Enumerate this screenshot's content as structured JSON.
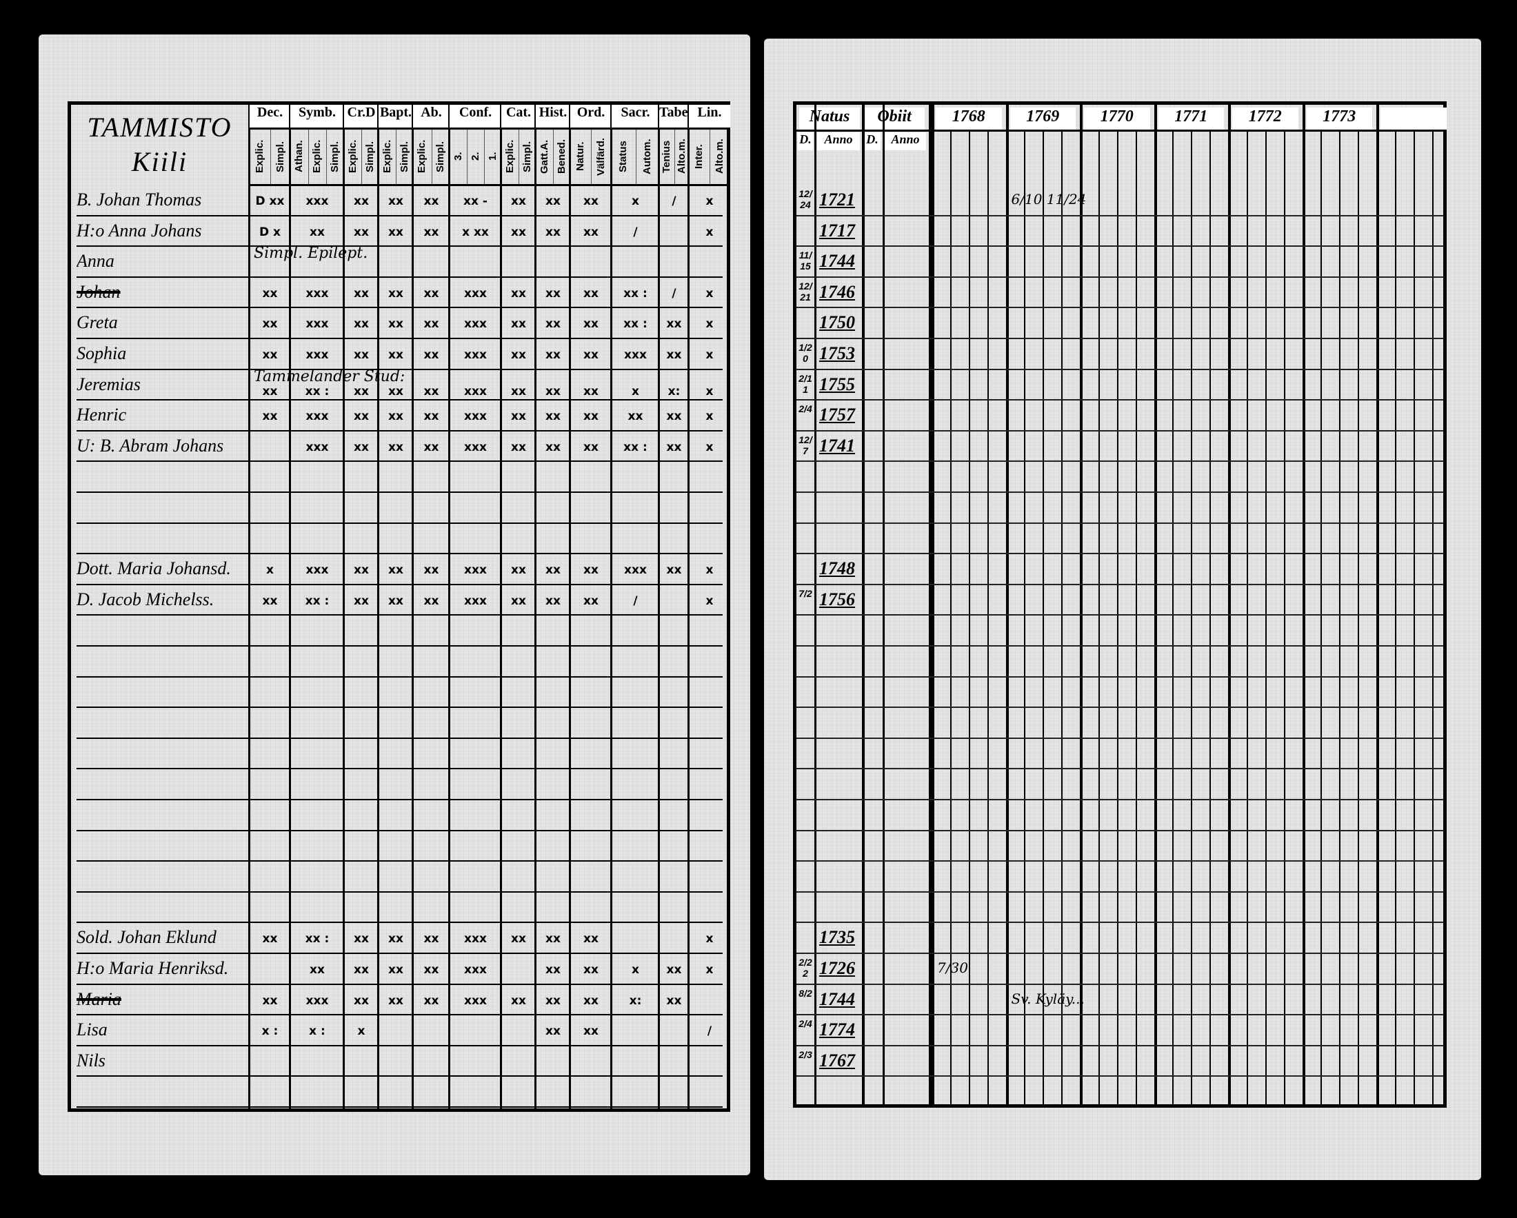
{
  "left_page": {
    "place_title": "TAMMISTO",
    "place_subtitle": "Kiili",
    "columns": [
      {
        "label": "Dec.",
        "sub": [
          "Explic.",
          "Simpl."
        ]
      },
      {
        "label": "Symb.",
        "sub": [
          "Athan.",
          "Explic.",
          "Simpl."
        ]
      },
      {
        "label": "Cr.D",
        "sub": [
          "Explic.",
          "Simpl."
        ]
      },
      {
        "label": "Bapt.",
        "sub": [
          "Explic.",
          "Simpl."
        ]
      },
      {
        "label": "Ab.",
        "sub": [
          "Explic.",
          "Simpl."
        ]
      },
      {
        "label": "Conf.",
        "sub": [
          "3.",
          "2.",
          "1."
        ]
      },
      {
        "label": "Cat.",
        "sub": [
          "Explic.",
          "Simpl."
        ]
      },
      {
        "label": "Hist.",
        "sub": [
          "Gatt.A.",
          "Bened."
        ]
      },
      {
        "label": "Ord.",
        "sub": [
          "Natur.",
          "Välfärd."
        ]
      },
      {
        "label": "Sacr.",
        "sub": [
          "Status",
          "Autom."
        ]
      },
      {
        "label": "Tabe.",
        "sub": [
          "Tenius",
          "Alto.m."
        ]
      },
      {
        "label": "Lin.",
        "sub": [
          "Inter.",
          "Alto.m."
        ]
      }
    ],
    "rows": [
      {
        "row": 0,
        "name": "B. Johan Thomas",
        "marks": [
          "D xx",
          "xxx",
          "xx",
          "xx",
          "xx",
          "xx -",
          "xx",
          "xx",
          "xx",
          "x",
          "/",
          "x"
        ]
      },
      {
        "row": 1,
        "name": "H:o Anna Johans",
        "marks": [
          "D x",
          "xx",
          "xx",
          "xx",
          "xx",
          "x xx",
          "xx",
          "xx",
          "xx",
          "/",
          "",
          "x"
        ]
      },
      {
        "row": 2,
        "name": "Anna",
        "marks": [
          "",
          "",
          "",
          "",
          "",
          "",
          "",
          "",
          "",
          "",
          "",
          ""
        ]
      },
      {
        "row": 3,
        "name": "Johan",
        "struck": true,
        "marks": [
          "xx",
          "xxx",
          "xx",
          "xx",
          "xx",
          "xxx",
          "xx",
          "xx",
          "xx",
          "xx :",
          "/",
          "x"
        ]
      },
      {
        "row": 4,
        "name": "Greta",
        "marks": [
          "xx",
          "xxx",
          "xx",
          "xx",
          "xx",
          "xxx",
          "xx",
          "xx",
          "xx",
          "xx :",
          "xx",
          "x"
        ]
      },
      {
        "row": 5,
        "name": "Sophia",
        "marks": [
          "xx",
          "xxx",
          "xx",
          "xx",
          "xx",
          "xxx",
          "xx",
          "xx",
          "xx",
          "xxx",
          "xx",
          "x"
        ]
      },
      {
        "row": 6,
        "name": "Jeremias",
        "marks": [
          "xx",
          "xx :",
          "xx",
          "xx",
          "xx",
          "xxx",
          "xx",
          "xx",
          "xx",
          "x",
          "x:",
          "x"
        ]
      },
      {
        "row": 7,
        "name": "Henric",
        "marks": [
          "xx",
          "xxx",
          "xx",
          "xx",
          "xx",
          "xxx",
          "xx",
          "xx",
          "xx",
          "xx",
          "xx",
          "x"
        ]
      },
      {
        "row": 8,
        "name": "U: B. Abram Johans",
        "marks": [
          "",
          "xxx",
          "xx",
          "xx",
          "xx",
          "xxx",
          "xx",
          "xx",
          "xx",
          "xx :",
          "xx",
          "x"
        ]
      },
      {
        "row": 12,
        "name": "Dott. Maria Johansd.",
        "marks": [
          "x",
          "xxx",
          "xx",
          "xx",
          "xx",
          "xxx",
          "xx",
          "xx",
          "xx",
          "xxx",
          "xx",
          "x"
        ]
      },
      {
        "row": 13,
        "name": "D. Jacob Michelss.",
        "marks": [
          "xx",
          "xx :",
          "xx",
          "xx",
          "xx",
          "xxx",
          "xx",
          "xx",
          "xx",
          "/",
          "",
          "x"
        ]
      },
      {
        "row": 24,
        "name": "Sold. Johan Eklund",
        "marks": [
          "xx",
          "xx :",
          "xx",
          "xx",
          "xx",
          "xxx",
          "xx",
          "xx",
          "xx",
          "",
          "",
          "x"
        ]
      },
      {
        "row": 25,
        "name": "H:o Maria Henriksd.",
        "marks": [
          "",
          "xx",
          "xx",
          "xx",
          "xx",
          "xxx",
          "",
          "xx",
          "xx",
          "x",
          "xx",
          "x"
        ]
      },
      {
        "row": 26,
        "name": "Maria",
        "struck": true,
        "marks": [
          "xx",
          "xxx",
          "xx",
          "xx",
          "xx",
          "xxx",
          "xx",
          "xx",
          "xx",
          "x:",
          "xx",
          ""
        ]
      },
      {
        "row": 27,
        "name": "Lisa",
        "marks": [
          "x :",
          "x :",
          "x",
          "",
          "",
          "",
          "",
          "xx",
          "xx",
          "",
          "",
          "/"
        ]
      },
      {
        "row": 28,
        "name": "Nils",
        "marks": [
          "",
          "",
          "",
          "",
          "",
          "",
          "",
          "",
          "",
          "",
          "",
          ""
        ]
      }
    ],
    "notes": [
      {
        "row": 2,
        "text": "Simpl. Epilept."
      },
      {
        "row": 6,
        "text": "Tammelander Stud:"
      }
    ]
  },
  "right_page": {
    "natus": {
      "label": "Natus",
      "sub_d": "D.",
      "sub_anno": "Anno"
    },
    "obiit": {
      "label": "Obiit",
      "sub_d": "D.",
      "sub_anno": "Anno"
    },
    "years": [
      "1768",
      "1769",
      "1770",
      "1771",
      "1772",
      "1773",
      ""
    ],
    "rows": [
      {
        "row": 0,
        "day": "12/24",
        "year": "1721"
      },
      {
        "row": 1,
        "day": "",
        "year": "1717"
      },
      {
        "row": 2,
        "day": "11/15",
        "year": "1744"
      },
      {
        "row": 3,
        "day": "12/21",
        "year": "1746"
      },
      {
        "row": 4,
        "day": "",
        "year": "1750"
      },
      {
        "row": 5,
        "day": "1/20",
        "year": "1753"
      },
      {
        "row": 6,
        "day": "2/11",
        "year": "1755"
      },
      {
        "row": 7,
        "day": "2/4",
        "year": "1757"
      },
      {
        "row": 8,
        "day": "12/7",
        "year": "1741"
      },
      {
        "row": 12,
        "day": "",
        "year": "1748"
      },
      {
        "row": 13,
        "day": "7/2",
        "year": "1756"
      },
      {
        "row": 24,
        "day": "",
        "year": "1735"
      },
      {
        "row": 25,
        "day": "2/22",
        "year": "1726"
      },
      {
        "row": 26,
        "day": "8/2",
        "year": "1744"
      },
      {
        "row": 27,
        "day": "2/4",
        "year": "1774"
      },
      {
        "row": 28,
        "day": "2/3",
        "year": "1767"
      }
    ],
    "entries": [
      {
        "row": 0,
        "col": 1,
        "text": "6/10  11/24"
      },
      {
        "row": 25,
        "col": 0,
        "text": "7/30"
      },
      {
        "row": 26,
        "col": 1,
        "text": "Sv. Kyläy..."
      }
    ]
  }
}
